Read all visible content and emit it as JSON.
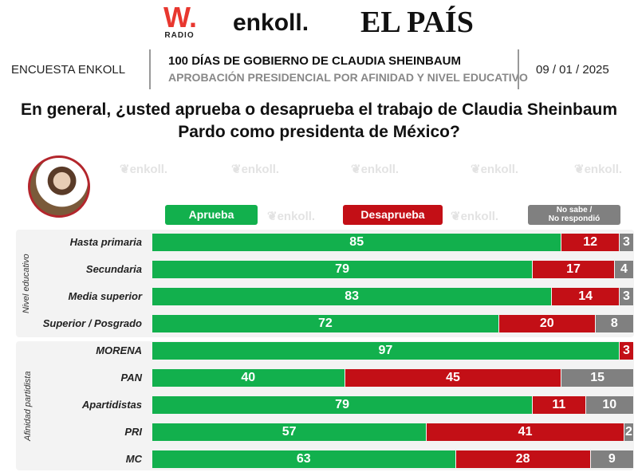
{
  "header": {
    "logo_w": "W.",
    "logo_w_sub": "RADIO",
    "logo_enkoll": "enkoll.",
    "logo_pais": "EL PAÍS",
    "survey": "ENCUESTA ENKOLL",
    "title": "100 DÍAS DE GOBIERNO DE CLAUDIA SHEINBAUM",
    "subtitle": "APROBACIÓN PRESIDENCIAL POR AFINIDAD Y NIVEL EDUCATIVO",
    "date": "09 / 01 / 2025"
  },
  "question": "En general, ¿usted aprueba o desaprueba el trabajo de Claudia Sheinbaum Pardo como presidenta de México?",
  "watermark": "enkoll.",
  "chart_data": {
    "type": "bar",
    "stacked": true,
    "orientation": "horizontal",
    "xlim": [
      0,
      100
    ],
    "legend": [
      "Aprueba",
      "Desaprueba",
      "No sabe / No respondió"
    ],
    "legend_placement": "top",
    "colors": {
      "Aprueba": "#12b04d",
      "Desaprueba": "#c30f16",
      "No sabe": "#808080"
    },
    "groups": [
      {
        "name": "Nivel educativo",
        "categories": [
          "Hasta primaria",
          "Secundaria",
          "Media superior",
          "Superior / Posgrado"
        ],
        "series": [
          {
            "name": "Aprueba",
            "values": [
              85,
              79,
              83,
              72
            ]
          },
          {
            "name": "Desaprueba",
            "values": [
              12,
              17,
              14,
              20
            ]
          },
          {
            "name": "No sabe / No respondió",
            "values": [
              3,
              4,
              3,
              8
            ]
          }
        ]
      },
      {
        "name": "Afinidad partidista",
        "categories": [
          "MORENA",
          "PAN",
          "Apartidistas",
          "PRI",
          "MC"
        ],
        "series": [
          {
            "name": "Aprueba",
            "values": [
              97,
              40,
              79,
              57,
              63
            ]
          },
          {
            "name": "Desaprueba",
            "values": [
              3,
              45,
              11,
              41,
              28
            ]
          },
          {
            "name": "No sabe / No respondió",
            "values": [
              0,
              15,
              10,
              2,
              9
            ]
          }
        ]
      }
    ]
  }
}
